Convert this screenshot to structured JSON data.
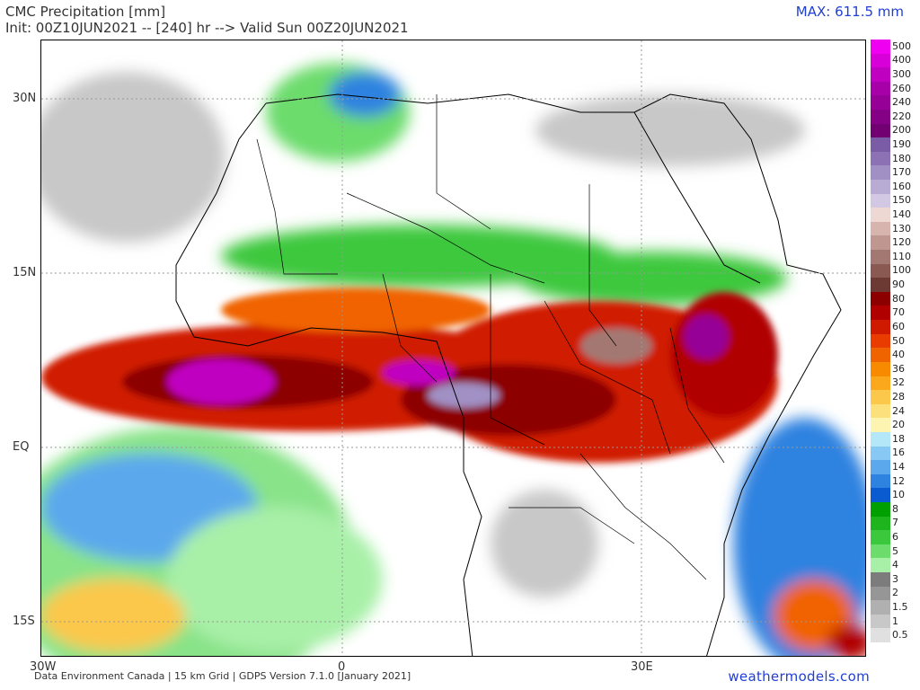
{
  "header": {
    "title": "CMC Precipitation [mm]",
    "init_line": "Init: 00Z10JUN2021 -- [240] hr --> Valid Sun 00Z20JUN2021",
    "max_label": "MAX: 611.5 mm"
  },
  "axes": {
    "lat_labels": [
      "30N",
      "15N",
      "EQ",
      "15S"
    ],
    "lon_labels": [
      "30W",
      "0",
      "30E"
    ]
  },
  "footer": {
    "credits": "Data Environment Canada | 15 km Grid | GDPS Version 7.1.0 [January 2021]",
    "site": "weathermodels.com"
  },
  "colors": {
    "border": "#000000",
    "gridline": "#999999",
    "accent_text": "#1f3fd6"
  },
  "scale": [
    {
      "label": "500",
      "color": "#f000f0"
    },
    {
      "label": "400",
      "color": "#d800d8"
    },
    {
      "label": "300",
      "color": "#c000c0"
    },
    {
      "label": "260",
      "color": "#a800a8"
    },
    {
      "label": "240",
      "color": "#960096"
    },
    {
      "label": "220",
      "color": "#840084"
    },
    {
      "label": "200",
      "color": "#720072"
    },
    {
      "label": "190",
      "color": "#7a5ca6"
    },
    {
      "label": "180",
      "color": "#8c72b4"
    },
    {
      "label": "170",
      "color": "#a090c4"
    },
    {
      "label": "160",
      "color": "#b8acd4"
    },
    {
      "label": "150",
      "color": "#d2c8e4"
    },
    {
      "label": "140",
      "color": "#eed8d4"
    },
    {
      "label": "130",
      "color": "#d8b4ae"
    },
    {
      "label": "120",
      "color": "#c09690"
    },
    {
      "label": "110",
      "color": "#a47872"
    },
    {
      "label": "100",
      "color": "#8a5a52"
    },
    {
      "label": "90",
      "color": "#6c3a32"
    },
    {
      "label": "80",
      "color": "#8c0000"
    },
    {
      "label": "70",
      "color": "#b00000"
    },
    {
      "label": "60",
      "color": "#d01a00"
    },
    {
      "label": "50",
      "color": "#e83c00"
    },
    {
      "label": "40",
      "color": "#f06400"
    },
    {
      "label": "36",
      "color": "#f88a00"
    },
    {
      "label": "32",
      "color": "#fca81c"
    },
    {
      "label": "28",
      "color": "#fcc84c"
    },
    {
      "label": "24",
      "color": "#fce07c"
    },
    {
      "label": "20",
      "color": "#fcf4b0"
    },
    {
      "label": "18",
      "color": "#b4e8f8"
    },
    {
      "label": "16",
      "color": "#88c8f4"
    },
    {
      "label": "14",
      "color": "#5ca8ec"
    },
    {
      "label": "12",
      "color": "#2e82e0"
    },
    {
      "label": "10",
      "color": "#0a5ad0"
    },
    {
      "label": "8",
      "color": "#00a000"
    },
    {
      "label": "7",
      "color": "#1eb41e"
    },
    {
      "label": "6",
      "color": "#3cc83c"
    },
    {
      "label": "5",
      "color": "#6cdc6c"
    },
    {
      "label": "4",
      "color": "#a8f0a8"
    },
    {
      "label": "3",
      "color": "#7c7c7c"
    },
    {
      "label": "2",
      "color": "#969696"
    },
    {
      "label": "1.5",
      "color": "#b0b0b0"
    },
    {
      "label": "1",
      "color": "#c8c8c8"
    },
    {
      "label": "0.5",
      "color": "#e0e0e0"
    }
  ]
}
